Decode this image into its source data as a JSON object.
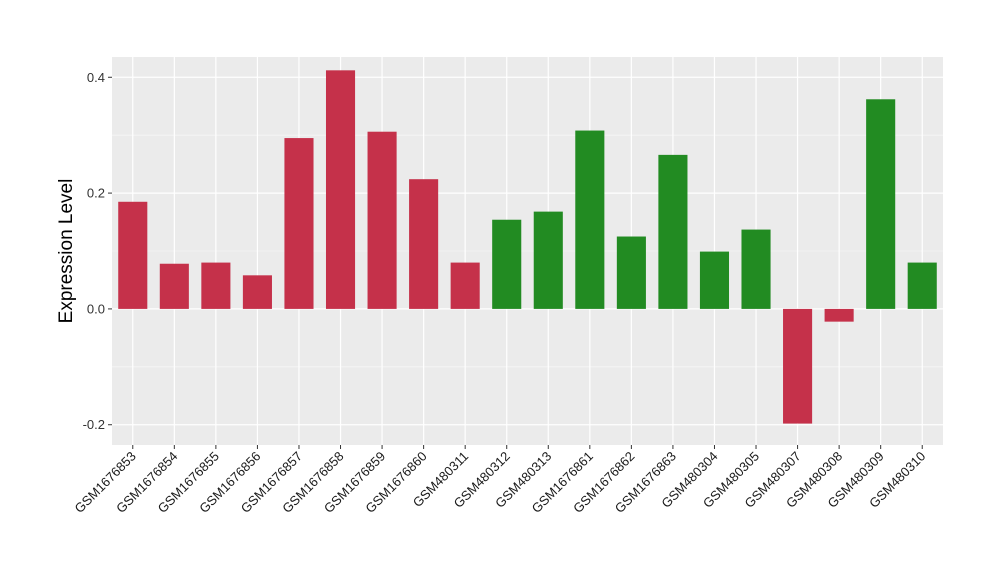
{
  "chart_data": {
    "type": "bar",
    "title": "",
    "xlabel": "",
    "ylabel": "Expression Level",
    "ylim": [
      -0.235,
      0.435
    ],
    "yticks": [
      -0.2,
      0.0,
      0.2,
      0.4
    ],
    "ytick_labels": [
      "-0.2",
      "0.0",
      "0.2",
      "0.4"
    ],
    "grid": true,
    "categories": [
      "GSM1676853",
      "GSM1676854",
      "GSM1676855",
      "GSM1676856",
      "GSM1676857",
      "GSM1676858",
      "GSM1676859",
      "GSM1676860",
      "GSM480311",
      "GSM480312",
      "GSM480313",
      "GSM1676861",
      "GSM1676862",
      "GSM1676863",
      "GSM480304",
      "GSM480305",
      "GSM480307",
      "GSM480308",
      "GSM480309",
      "GSM480310"
    ],
    "values": [
      0.185,
      0.078,
      0.08,
      0.058,
      0.295,
      0.412,
      0.306,
      0.224,
      0.08,
      0.154,
      0.168,
      0.308,
      0.125,
      0.266,
      0.099,
      0.137,
      -0.198,
      -0.022,
      0.362,
      0.08
    ],
    "groups": [
      "red",
      "red",
      "red",
      "red",
      "red",
      "red",
      "red",
      "red",
      "red",
      "green",
      "green",
      "green",
      "green",
      "green",
      "green",
      "green",
      "red",
      "red",
      "green",
      "green"
    ],
    "colors": {
      "red": "#C5314A",
      "green": "#228B22",
      "panel": "#EBEBEB",
      "grid_major": "#FFFFFF",
      "grid_minor": "#F5F5F5"
    }
  }
}
